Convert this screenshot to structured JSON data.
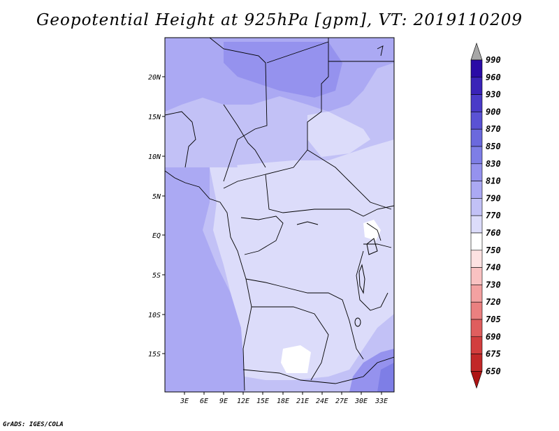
{
  "title": "Geopotential Height at 925hPa [gpm], VT: 2019110209",
  "credit": "GrADS: IGES/COLA",
  "map": {
    "lat_labels": [
      "20N",
      "15N",
      "10N",
      "5N",
      "EQ",
      "5S",
      "10S",
      "15S"
    ],
    "lon_labels": [
      "3E",
      "6E",
      "9E",
      "12E",
      "15E",
      "18E",
      "21E",
      "24E",
      "27E",
      "30E",
      "33E"
    ]
  },
  "colorbar": {
    "levels": [
      "990",
      "960",
      "930",
      "900",
      "870",
      "850",
      "830",
      "810",
      "790",
      "770",
      "760",
      "750",
      "740",
      "730",
      "720",
      "705",
      "690",
      "675",
      "650"
    ],
    "colors": [
      "#2a0ba6",
      "#3a23b8",
      "#4a3bc8",
      "#5a52d4",
      "#6b69dd",
      "#7e7ee6",
      "#9592ee",
      "#aba9f3",
      "#c2c1f6",
      "#dcdcfa",
      "#ffffff",
      "#fde2e2",
      "#f9c2c2",
      "#f3a1a1",
      "#ea8080",
      "#df5e5e",
      "#d23e3e",
      "#c22828",
      "#ae1414"
    ],
    "top_arrow_color": "#a7a7a7"
  }
}
